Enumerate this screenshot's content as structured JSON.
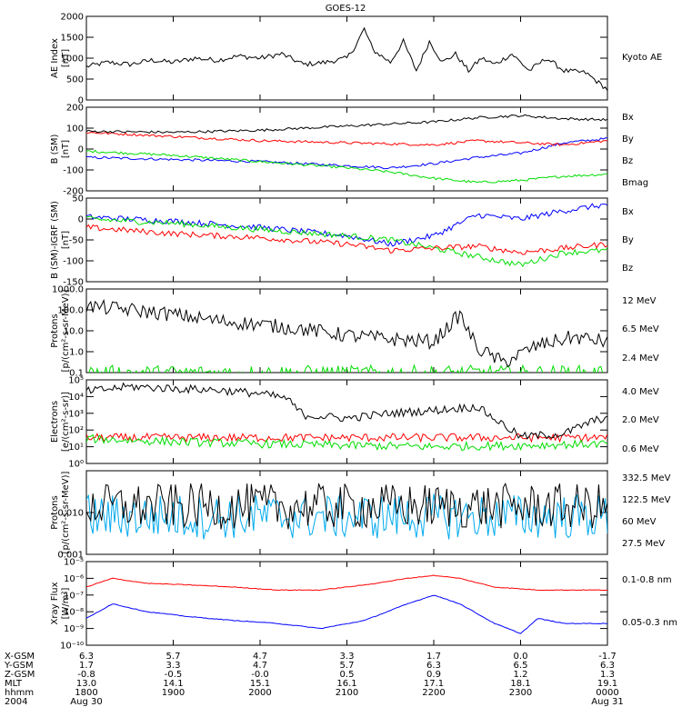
{
  "title": "GOES-12",
  "colors": {
    "black": "#000000",
    "red": "#ff0000",
    "green": "#00dd00",
    "blue": "#0000ff",
    "cyan": "#00aaee",
    "yellow": "#ffdd00"
  },
  "chart_data": [
    {
      "panel": "ae",
      "type": "line",
      "ylabel": "AE Index",
      "yunit": "[nT]",
      "scale": "linear",
      "ylim": [
        0,
        2000
      ],
      "yticks": [
        {
          "v": 0,
          "label": "0"
        },
        {
          "v": 500,
          "label": "500"
        },
        {
          "v": 1000,
          "label": "1000"
        },
        {
          "v": 1500,
          "label": "1500"
        },
        {
          "v": 2000,
          "label": "2000"
        }
      ],
      "series": [
        {
          "name": "Kyoto AE",
          "color": "black",
          "x": [
            18.0,
            18.25,
            18.5,
            18.75,
            19.0,
            19.25,
            19.5,
            19.75,
            20.0,
            20.25,
            20.5,
            20.75,
            21.0,
            21.1,
            21.2,
            21.3,
            21.5,
            21.65,
            21.8,
            21.95,
            22.1,
            22.25,
            22.4,
            22.55,
            22.7,
            22.9,
            23.1,
            23.3,
            23.5,
            23.75,
            24.0
          ],
          "values": [
            800,
            900,
            850,
            950,
            900,
            1000,
            950,
            1050,
            1000,
            1100,
            850,
            900,
            1000,
            1300,
            1700,
            1200,
            900,
            1400,
            700,
            1400,
            900,
            1100,
            700,
            1000,
            850,
            1100,
            700,
            1000,
            700,
            650,
            250
          ]
        }
      ]
    },
    {
      "panel": "b",
      "type": "line",
      "ylabel": "B (SM)",
      "yunit": "[nT]",
      "scale": "linear",
      "ylim": [
        -200,
        200
      ],
      "yticks": [
        {
          "v": -200,
          "label": "-200"
        },
        {
          "v": -100,
          "label": "-100"
        },
        {
          "v": 0,
          "label": "0"
        },
        {
          "v": 100,
          "label": "100"
        },
        {
          "v": 200,
          "label": "200"
        }
      ],
      "series": [
        {
          "name": "Bx",
          "color": "blue",
          "x": [
            18.0,
            19.0,
            20.0,
            21.0,
            21.5,
            22.0,
            22.5,
            23.0,
            23.5,
            24.0
          ],
          "values": [
            -40,
            -50,
            -60,
            -80,
            -90,
            -70,
            -40,
            -20,
            30,
            50
          ]
        },
        {
          "name": "By",
          "color": "green",
          "x": [
            18.0,
            19.0,
            20.0,
            21.0,
            21.5,
            22.0,
            22.5,
            23.0,
            23.5,
            24.0
          ],
          "values": [
            -10,
            -30,
            -60,
            -90,
            -110,
            -140,
            -160,
            -150,
            -130,
            -120
          ]
        },
        {
          "name": "Bz",
          "color": "red",
          "x": [
            18.0,
            19.0,
            20.0,
            21.0,
            21.5,
            22.0,
            22.5,
            23.0,
            23.5,
            24.0
          ],
          "values": [
            80,
            60,
            40,
            30,
            25,
            20,
            40,
            30,
            20,
            40
          ]
        },
        {
          "name": "Bmag",
          "color": "black",
          "x": [
            18.0,
            19.0,
            20.0,
            21.0,
            21.5,
            22.0,
            22.5,
            23.0,
            23.5,
            24.0
          ],
          "values": [
            85,
            80,
            90,
            110,
            120,
            130,
            150,
            160,
            145,
            140
          ]
        }
      ]
    },
    {
      "panel": "b-igrf",
      "type": "line",
      "ylabel": "B (SM)-IGRF (SM)",
      "yunit": "[nT]",
      "scale": "linear",
      "ylim": [
        -150,
        50
      ],
      "yticks": [
        {
          "v": -150,
          "label": "-150"
        },
        {
          "v": -100,
          "label": "-100"
        },
        {
          "v": -50,
          "label": "-50"
        },
        {
          "v": 0,
          "label": "0"
        },
        {
          "v": 50,
          "label": "50"
        }
      ],
      "series": [
        {
          "name": "Bx",
          "color": "blue",
          "x": [
            18.0,
            19.0,
            20.0,
            21.0,
            21.5,
            22.0,
            22.5,
            23.0,
            23.5,
            24.0
          ],
          "values": [
            5,
            -5,
            -20,
            -40,
            -60,
            -40,
            10,
            0,
            20,
            35
          ]
        },
        {
          "name": "By",
          "color": "green",
          "x": [
            18.0,
            19.0,
            20.0,
            21.0,
            21.5,
            22.0,
            22.5,
            23.0,
            23.5,
            24.0
          ],
          "values": [
            0,
            -10,
            -25,
            -40,
            -50,
            -70,
            -90,
            -110,
            -80,
            -75
          ]
        },
        {
          "name": "Bz",
          "color": "red",
          "x": [
            18.0,
            19.0,
            20.0,
            21.0,
            21.5,
            22.0,
            22.5,
            23.0,
            23.5,
            24.0
          ],
          "values": [
            -20,
            -35,
            -45,
            -60,
            -75,
            -70,
            -65,
            -80,
            -70,
            -60
          ]
        }
      ]
    },
    {
      "panel": "protons-low",
      "type": "line",
      "ylabel": "Protons",
      "yunit": "[p/(cm²-s-sr-MeV)]",
      "scale": "log",
      "ylim": [
        0.1,
        1000
      ],
      "yticks": [
        {
          "v": 0.1,
          "label": "0.1"
        },
        {
          "v": 1,
          "label": "1.0"
        },
        {
          "v": 10,
          "label": "10.0"
        },
        {
          "v": 100,
          "label": "100.0"
        },
        {
          "v": 1000,
          "label": "1000.0"
        }
      ],
      "series": [
        {
          "name": "12 MeV",
          "color": "red",
          "x": [],
          "values": []
        },
        {
          "name": "6.5 MeV",
          "color": "green",
          "x": [
            18.0,
            24.0
          ],
          "values": [
            0.1,
            0.1
          ]
        },
        {
          "name": "2.4 MeV",
          "color": "black",
          "x": [
            18.0,
            18.5,
            19.0,
            19.5,
            20.0,
            20.5,
            21.0,
            21.5,
            22.0,
            22.3,
            22.5,
            22.8,
            23.2,
            23.6,
            24.0
          ],
          "values": [
            150,
            100,
            60,
            30,
            20,
            12,
            6,
            4,
            3,
            60,
            1.5,
            0.3,
            2,
            5,
            3
          ]
        }
      ]
    },
    {
      "panel": "electrons",
      "type": "line",
      "ylabel": "Electrons",
      "yunit": "[e/(cm²-s-sr)]",
      "scale": "log",
      "ylim": [
        1,
        100000
      ],
      "yticks": [
        {
          "v": 1,
          "label": "10⁰"
        },
        {
          "v": 10,
          "label": "10¹"
        },
        {
          "v": 100,
          "label": "10²"
        },
        {
          "v": 1000,
          "label": "10³"
        },
        {
          "v": 10000,
          "label": "10⁴"
        },
        {
          "v": 100000,
          "label": "10⁵"
        }
      ],
      "series": [
        {
          "name": "4.0 MeV",
          "color": "red",
          "x": [
            18.0,
            24.0
          ],
          "values": [
            35,
            35
          ]
        },
        {
          "name": "2.0 MeV",
          "color": "green",
          "x": [
            18.0,
            19.0,
            20.0,
            21.0,
            22.0,
            23.0,
            24.0
          ],
          "values": [
            30,
            20,
            15,
            12,
            10,
            12,
            15
          ]
        },
        {
          "name": "0.6 MeV",
          "color": "black",
          "x": [
            18.0,
            18.5,
            19.0,
            19.5,
            20.0,
            20.3,
            20.5,
            21.0,
            21.5,
            22.0,
            22.5,
            23.0,
            23.5,
            23.8,
            24.0
          ],
          "values": [
            20000,
            40000,
            30000,
            25000,
            15000,
            8000,
            800,
            500,
            1000,
            1500,
            2500,
            40,
            60,
            300,
            600
          ]
        }
      ]
    },
    {
      "panel": "protons-high",
      "type": "line",
      "ylabel": "Protons",
      "yunit": "[p/(cm²-s-sr-MeV)]",
      "scale": "log",
      "ylim": [
        0.001,
        0.1
      ],
      "yticks": [
        {
          "v": 0.001,
          "label": "0.001"
        },
        {
          "v": 0.01,
          "label": "0.010"
        }
      ],
      "series": [
        {
          "name": "332.5 MeV",
          "color": "red",
          "x": [],
          "values": []
        },
        {
          "name": "122.5 MeV",
          "color": "yellow",
          "x": [],
          "values": []
        },
        {
          "name": "60 MeV",
          "color": "cyan",
          "x": [
            18.0,
            24.0
          ],
          "values": [
            0.008,
            0.008
          ]
        },
        {
          "name": "27.5 MeV",
          "color": "black",
          "x": [
            18.0,
            24.0
          ],
          "values": [
            0.014,
            0.014
          ]
        }
      ]
    },
    {
      "panel": "xray",
      "type": "line",
      "ylabel": "Xray Flux",
      "yunit": "[W/m²]",
      "scale": "log",
      "ylim": [
        1e-10,
        1e-05
      ],
      "yticks": [
        {
          "v": 1e-10,
          "label": "10⁻¹⁰"
        },
        {
          "v": 1e-09,
          "label": "10⁻⁹"
        },
        {
          "v": 1e-08,
          "label": "10⁻⁸"
        },
        {
          "v": 1e-07,
          "label": "10⁻⁷"
        },
        {
          "v": 1e-06,
          "label": "10⁻⁶"
        },
        {
          "v": 1e-05,
          "label": "10⁻⁵"
        }
      ],
      "series": [
        {
          "name": "0.1-0.8 nm",
          "color": "red",
          "x": [
            18.0,
            18.3,
            18.7,
            19.2,
            19.7,
            20.2,
            20.7,
            21.2,
            21.7,
            22.0,
            22.3,
            22.7,
            23.2,
            23.7,
            24.0
          ],
          "values": [
            3e-07,
            1e-06,
            5e-07,
            4e-07,
            3e-07,
            2e-07,
            2e-07,
            4e-07,
            1e-06,
            1.5e-06,
            1e-06,
            3e-07,
            2e-07,
            2e-07,
            2e-07
          ]
        },
        {
          "name": "0.05-0.3 nm",
          "color": "blue",
          "x": [
            18.0,
            18.3,
            18.7,
            19.2,
            19.7,
            20.2,
            20.7,
            21.2,
            21.7,
            22.0,
            22.3,
            22.7,
            23.0,
            23.2,
            23.5,
            24.0
          ],
          "values": [
            4e-09,
            3e-08,
            1e-08,
            5e-09,
            3e-09,
            2e-09,
            1e-09,
            3e-09,
            3e-08,
            1e-07,
            3e-08,
            2e-09,
            5e-10,
            4e-09,
            2e-09,
            2e-09
          ]
        }
      ]
    }
  ],
  "xaxis": {
    "range": [
      18,
      24
    ],
    "tick_hours": [
      18,
      19,
      20,
      21,
      22,
      23,
      24
    ],
    "rows": [
      {
        "label": "X-GSM",
        "values": [
          "6.3",
          "5.7",
          "4.7",
          "3.3",
          "1.7",
          "0.0",
          "-1.7"
        ]
      },
      {
        "label": "Y-GSM",
        "values": [
          "1.7",
          "3.3",
          "4.7",
          "5.7",
          "6.3",
          "6.5",
          "6.3"
        ]
      },
      {
        "label": "Z-GSM",
        "values": [
          "-0.8",
          "-0.5",
          "-0.0",
          "0.5",
          "0.9",
          "1.2",
          "1.3"
        ]
      },
      {
        "label": "MLT",
        "values": [
          "13.0",
          "14.1",
          "15.1",
          "16.1",
          "17.1",
          "18.1",
          "19.1"
        ]
      },
      {
        "label": "hhmm",
        "values": [
          "1800",
          "1900",
          "2000",
          "2100",
          "2200",
          "2300",
          "0000"
        ]
      },
      {
        "label": "2004",
        "values": [
          "Aug 30",
          "",
          "",
          "",
          "",
          "",
          "Aug 31"
        ]
      }
    ]
  }
}
